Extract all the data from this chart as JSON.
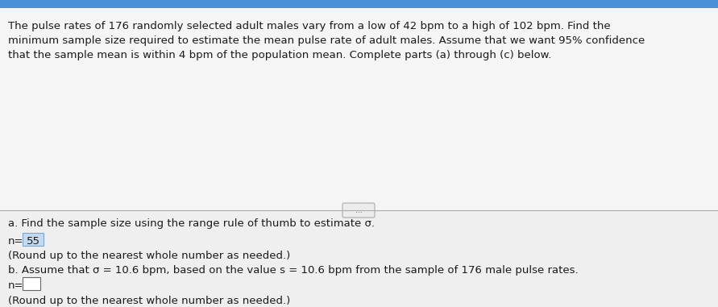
{
  "top_bar_color": "#4a90d9",
  "header_bg": "#f5f5f5",
  "body_bg": "#efefef",
  "divider_color": "#aaaaaa",
  "header_text_line1": "The pulse rates of 176 randomly selected adult males vary from a low of 42 bpm to a high of 102 bpm. Find the",
  "header_text_line2": "minimum sample size required to estimate the mean pulse rate of adult males. Assume that we want 95% confidence",
  "header_text_line3": "that the sample mean is within 4 bpm of the population mean. Complete parts (a) through (c) below.",
  "divider_button_text": "...",
  "part_a_label": "a. Find the sample size using the range rule of thumb to estimate σ.",
  "part_a_answer_prefix": "n=",
  "part_a_answer_value": "55",
  "part_a_note": "(Round up to the nearest whole number as needed.)",
  "part_b_label": "b. Assume that σ = 10.6 bpm, based on the value s = 10.6 bpm from the sample of 176 male pulse rates.",
  "part_b_answer_prefix": "n=",
  "part_b_note": "(Round up to the nearest whole number as needed.)",
  "text_color": "#1a1a1a",
  "fontsize": 9.5,
  "highlight_color": "#c5d9f1",
  "highlight_border": "#7aa6d0",
  "empty_box_color": "#ffffff",
  "empty_box_border": "#666666"
}
